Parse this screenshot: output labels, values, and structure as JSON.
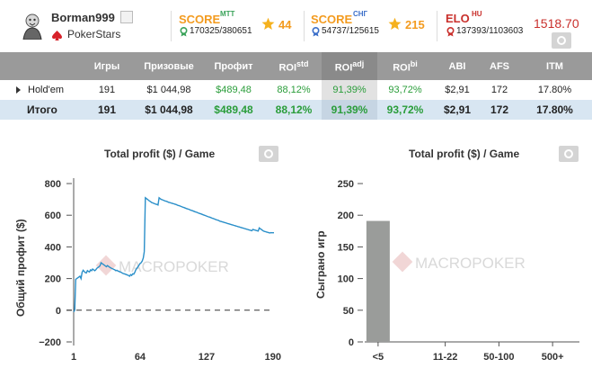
{
  "user": {
    "name": "Borman999",
    "room": "PokerStars"
  },
  "scores": [
    {
      "title": "SCORE",
      "sup": "MTT",
      "stat": "170325/380651",
      "stars": "44"
    },
    {
      "title": "SCORE",
      "sup": "СНГ",
      "stat": "54737/125615",
      "stars": "215"
    }
  ],
  "elo": {
    "title": "ELO",
    "sup": "HU",
    "stat": "137393/1103603",
    "value": "1518.70"
  },
  "table": {
    "headers": [
      "",
      "Игры",
      "Призовые",
      "Профит",
      "ROI",
      "ROI",
      "ROI",
      "ABI",
      "AFS",
      "ITM"
    ],
    "roi_sups": [
      "std",
      "adj",
      "bi"
    ],
    "rows": [
      {
        "name": "Hold'em",
        "games": "191",
        "prize": "$1 044,98",
        "profit": "$489,48",
        "roi_std": "88,12%",
        "roi_adj": "91,39%",
        "roi_bi": "93,72%",
        "abi": "$2,91",
        "afs": "172",
        "itm": "17.80%"
      },
      {
        "name": "Итого",
        "games": "191",
        "prize": "$1 044,98",
        "profit": "$489,48",
        "roi_std": "88,12%",
        "roi_adj": "91,39%",
        "roi_bi": "93,72%",
        "abi": "$2,91",
        "afs": "172",
        "itm": "17.80%"
      }
    ]
  },
  "watermark": "MACROPOKER",
  "chart_data": [
    {
      "type": "line",
      "title": "Total profit ($) / Game",
      "ylabel": "Общий профит ($)",
      "xlabel": "",
      "xticks": [
        "1",
        "64",
        "127",
        "190"
      ],
      "yticks": [
        "800",
        "600",
        "400",
        "200",
        "0",
        "−200"
      ],
      "xlim": [
        1,
        191
      ],
      "ylim": [
        -200,
        800
      ],
      "color": "#2a8fc9",
      "x": [
        1,
        2,
        3,
        4,
        5,
        6,
        7,
        8,
        9,
        10,
        11,
        12,
        13,
        14,
        15,
        16,
        17,
        18,
        19,
        20,
        21,
        22,
        23,
        24,
        25,
        26,
        27,
        28,
        29,
        30,
        31,
        32,
        33,
        34,
        35,
        36,
        37,
        38,
        39,
        40,
        41,
        42,
        43,
        44,
        45,
        46,
        47,
        48,
        49,
        50,
        51,
        52,
        53,
        54,
        55,
        56,
        57,
        58,
        59,
        60,
        61,
        62,
        63,
        64,
        65,
        66,
        67,
        68,
        69,
        70,
        71,
        72,
        73,
        74,
        75,
        76,
        77,
        78,
        79,
        80,
        81,
        82,
        83,
        84,
        85,
        86,
        87,
        88,
        89,
        90,
        91,
        92,
        93,
        94,
        95,
        96,
        97,
        98,
        99,
        100,
        101,
        102,
        103,
        104,
        105,
        106,
        107,
        108,
        109,
        110,
        111,
        112,
        113,
        114,
        115,
        116,
        117,
        118,
        119,
        120,
        121,
        122,
        123,
        124,
        125,
        126,
        127,
        128,
        129,
        130,
        131,
        132,
        133,
        134,
        135,
        136,
        137,
        138,
        139,
        140,
        141,
        142,
        143,
        144,
        145,
        146,
        147,
        148,
        149,
        150,
        151,
        152,
        153,
        154,
        155,
        156,
        157,
        158,
        159,
        160,
        161,
        162,
        163,
        164,
        165,
        166,
        167,
        168,
        169,
        170,
        171,
        172,
        173,
        174,
        175,
        176,
        177,
        178,
        179,
        180,
        181,
        182,
        183,
        184,
        185,
        186,
        187,
        188,
        189,
        190,
        191
      ],
      "y": [
        -10,
        0,
        195,
        200,
        205,
        210,
        215,
        200,
        240,
        252,
        245,
        238,
        235,
        250,
        245,
        242,
        255,
        250,
        260,
        255,
        250,
        255,
        265,
        270,
        275,
        280,
        300,
        295,
        290,
        285,
        280,
        275,
        282,
        278,
        272,
        268,
        264,
        262,
        258,
        255,
        250,
        252,
        248,
        245,
        242,
        240,
        235,
        232,
        230,
        228,
        225,
        222,
        220,
        215,
        225,
        220,
        230,
        228,
        240,
        255,
        265,
        275,
        285,
        295,
        300,
        310,
        330,
        370,
        710,
        705,
        700,
        695,
        690,
        685,
        680,
        678,
        675,
        672,
        670,
        668,
        665,
        710,
        705,
        700,
        698,
        695,
        692,
        690,
        688,
        685,
        682,
        680,
        678,
        676,
        674,
        672,
        670,
        668,
        665,
        662,
        660,
        658,
        655,
        652,
        650,
        648,
        645,
        642,
        640,
        638,
        635,
        632,
        630,
        628,
        625,
        622,
        620,
        618,
        615,
        612,
        610,
        608,
        605,
        602,
        600,
        598,
        595,
        592,
        590,
        588,
        585,
        582,
        580,
        578,
        575,
        572,
        570,
        568,
        565,
        562,
        560,
        558,
        556,
        554,
        552,
        550,
        548,
        546,
        544,
        542,
        540,
        538,
        536,
        534,
        532,
        530,
        528,
        526,
        524,
        522,
        520,
        518,
        516,
        514,
        512,
        510,
        508,
        506,
        504,
        502,
        510,
        508,
        506,
        504,
        502,
        500,
        520,
        515,
        510,
        505,
        500,
        498,
        496,
        494,
        492,
        490,
        488,
        490,
        489,
        489,
        489
      ]
    },
    {
      "type": "bar",
      "title": "Total profit ($) / Game",
      "ylabel": "Сыграно игр",
      "xlabel": "",
      "categories": [
        "<5",
        "11-22",
        "50-100",
        "500+"
      ],
      "values": [
        191,
        0,
        0,
        0
      ],
      "yticks": [
        "250",
        "200",
        "150",
        "100",
        "50",
        "0"
      ],
      "ylim": [
        0,
        250
      ],
      "color": "#9a9c9a"
    }
  ]
}
